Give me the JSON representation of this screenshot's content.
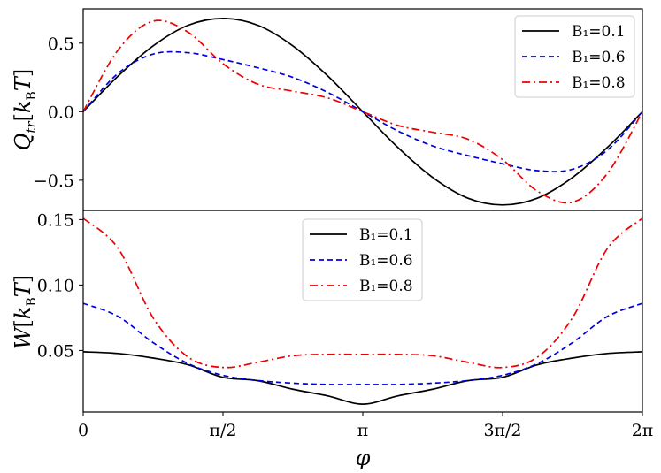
{
  "chart_data": [
    {
      "type": "line",
      "panel": "top",
      "ylabel": "Q_tr [k_B T]",
      "ylabel_display": "Q_tr[k_BT]",
      "xlim": [
        0,
        6.2832
      ],
      "ylim": [
        -0.72,
        0.75
      ],
      "yticks": [
        -0.5,
        0.0,
        0.5
      ],
      "ytick_labels": [
        "−0.5",
        "0.0",
        "0.5"
      ],
      "legend_position": "top-right",
      "series": [
        {
          "name": "B1=0.1",
          "legend_label": "B₁=0.1",
          "color": "#000000",
          "dash": "none",
          "x": [
            0,
            0.3927,
            0.7854,
            1.1781,
            1.5708,
            1.9635,
            2.3562,
            2.7489,
            3.1416,
            3.5343,
            3.927,
            4.3197,
            4.7124,
            5.1051,
            5.4978,
            5.8905,
            6.2832
          ],
          "values": [
            0.0,
            0.26,
            0.48,
            0.63,
            0.68,
            0.63,
            0.48,
            0.26,
            0.0,
            -0.26,
            -0.48,
            -0.63,
            -0.68,
            -0.63,
            -0.48,
            -0.26,
            0.0
          ]
        },
        {
          "name": "B1=0.6",
          "legend_label": "B₁=0.6",
          "color": "#0000dd",
          "dash": "6,4",
          "x": [
            0,
            0.3927,
            0.7854,
            1.1781,
            1.5708,
            1.9635,
            2.3562,
            2.7489,
            3.1416,
            3.5343,
            3.927,
            4.3197,
            4.7124,
            5.1051,
            5.4978,
            5.8905,
            6.2832
          ],
          "values": [
            0.0,
            0.28,
            0.42,
            0.43,
            0.38,
            0.32,
            0.25,
            0.14,
            0.0,
            -0.14,
            -0.25,
            -0.32,
            -0.38,
            -0.43,
            -0.42,
            -0.28,
            0.0
          ]
        },
        {
          "name": "B1=0.8",
          "legend_label": "B₁=0.8",
          "color": "#ee0000",
          "dash": "9,4,2,4",
          "x": [
            0,
            0.3927,
            0.7854,
            1.1781,
            1.5708,
            1.9635,
            2.3562,
            2.7489,
            3.1416,
            3.5343,
            3.927,
            4.3197,
            4.7124,
            5.1051,
            5.4978,
            5.8905,
            6.2832
          ],
          "values": [
            0.0,
            0.45,
            0.66,
            0.58,
            0.35,
            0.2,
            0.15,
            0.1,
            0.0,
            -0.1,
            -0.15,
            -0.2,
            -0.35,
            -0.58,
            -0.66,
            -0.45,
            0.0
          ]
        }
      ]
    },
    {
      "type": "line",
      "panel": "bottom",
      "xlabel": "φ",
      "ylabel": "W [k_B T]",
      "ylabel_display": "W[k_BT]",
      "xlim": [
        0,
        6.2832
      ],
      "ylim": [
        0.003,
        0.157
      ],
      "yticks": [
        0.05,
        0.1,
        0.15
      ],
      "ytick_labels": [
        "0.05",
        "0.10",
        "0.15"
      ],
      "xtick_values": [
        0,
        1.5708,
        3.1416,
        4.7124,
        6.2832
      ],
      "xtick_labels": [
        "0",
        "π/2",
        "π",
        "3π/2",
        "2π"
      ],
      "legend_position": "top-center",
      "series": [
        {
          "name": "B1=0.1",
          "legend_label": "B₁=0.1",
          "color": "#000000",
          "dash": "none",
          "x": [
            0,
            0.3927,
            0.7854,
            1.1781,
            1.5708,
            1.9635,
            2.3562,
            2.7489,
            3.1416,
            3.5343,
            3.927,
            4.3197,
            4.7124,
            5.1051,
            5.4978,
            5.8905,
            6.2832
          ],
          "values": [
            0.049,
            0.0477,
            0.0442,
            0.0391,
            0.0295,
            0.0269,
            0.0204,
            0.0153,
            0.009,
            0.0153,
            0.0204,
            0.0269,
            0.0295,
            0.0391,
            0.0442,
            0.0477,
            0.049
          ]
        },
        {
          "name": "B1=0.6",
          "legend_label": "B₁=0.6",
          "color": "#0000dd",
          "dash": "6,4",
          "x": [
            0,
            0.3927,
            0.7854,
            1.1781,
            1.5708,
            1.9635,
            2.3562,
            2.7489,
            3.1416,
            3.5343,
            3.927,
            4.3197,
            4.7124,
            5.1051,
            5.4978,
            5.8905,
            6.2832
          ],
          "values": [
            0.086,
            0.076,
            0.056,
            0.04,
            0.031,
            0.027,
            0.025,
            0.024,
            0.024,
            0.024,
            0.025,
            0.027,
            0.031,
            0.04,
            0.056,
            0.076,
            0.086
          ]
        },
        {
          "name": "B1=0.8",
          "legend_label": "B₁=0.8",
          "color": "#ee0000",
          "dash": "9,4,2,4",
          "x": [
            0,
            0.3927,
            0.7854,
            1.1781,
            1.5708,
            1.9635,
            2.3562,
            2.7489,
            3.1416,
            3.5343,
            3.927,
            4.3197,
            4.7124,
            5.1051,
            5.4978,
            5.8905,
            6.2832
          ],
          "values": [
            0.151,
            0.128,
            0.075,
            0.045,
            0.037,
            0.041,
            0.046,
            0.047,
            0.047,
            0.047,
            0.046,
            0.041,
            0.037,
            0.045,
            0.075,
            0.128,
            0.151
          ]
        }
      ]
    }
  ]
}
